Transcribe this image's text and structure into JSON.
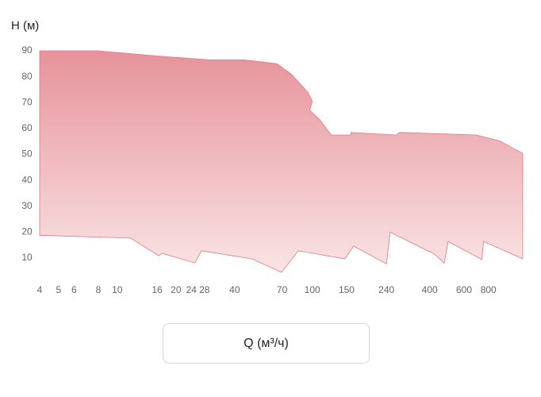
{
  "chart_data": {
    "type": "area",
    "y_label": "H (м)",
    "x_label": "Q (м³/ч)",
    "xscale": "log",
    "xlim": [
      4,
      1200
    ],
    "ylim": [
      0,
      90
    ],
    "xticks": [
      4,
      5,
      6,
      8,
      10,
      16,
      20,
      24,
      28,
      40,
      70,
      100,
      150,
      240,
      400,
      600,
      800
    ],
    "yticks": [
      10,
      20,
      30,
      40,
      50,
      60,
      70,
      80,
      90
    ],
    "grid": false,
    "color": "#e07a80",
    "series": [
      {
        "x": [
          4,
          8,
          16,
          30,
          45,
          66,
          78,
          95,
          100,
          97,
          109,
          125,
          158,
          158,
          270,
          280,
          690,
          910,
          1200
        ],
        "values": [
          90,
          90,
          88,
          86.5,
          86.5,
          85,
          81,
          74,
          70.5,
          67,
          63.5,
          57.5,
          57.5,
          58.5,
          57.5,
          58.5,
          57.5,
          55.3,
          50.4
        ]
      },
      {
        "x": [
          1200,
          755,
          740,
          497,
          475,
          423,
          251,
          240,
          163,
          147,
          85,
          69.5,
          49,
          27,
          25,
          17,
          16.3,
          11.7,
          4
        ],
        "values": [
          9.7,
          16.4,
          9.4,
          16.4,
          8.1,
          11.5,
          20,
          7.8,
          14.6,
          9.7,
          12.8,
          4.5,
          9.7,
          12.8,
          8.1,
          11.8,
          10.9,
          17.7,
          18.8
        ]
      }
    ]
  }
}
